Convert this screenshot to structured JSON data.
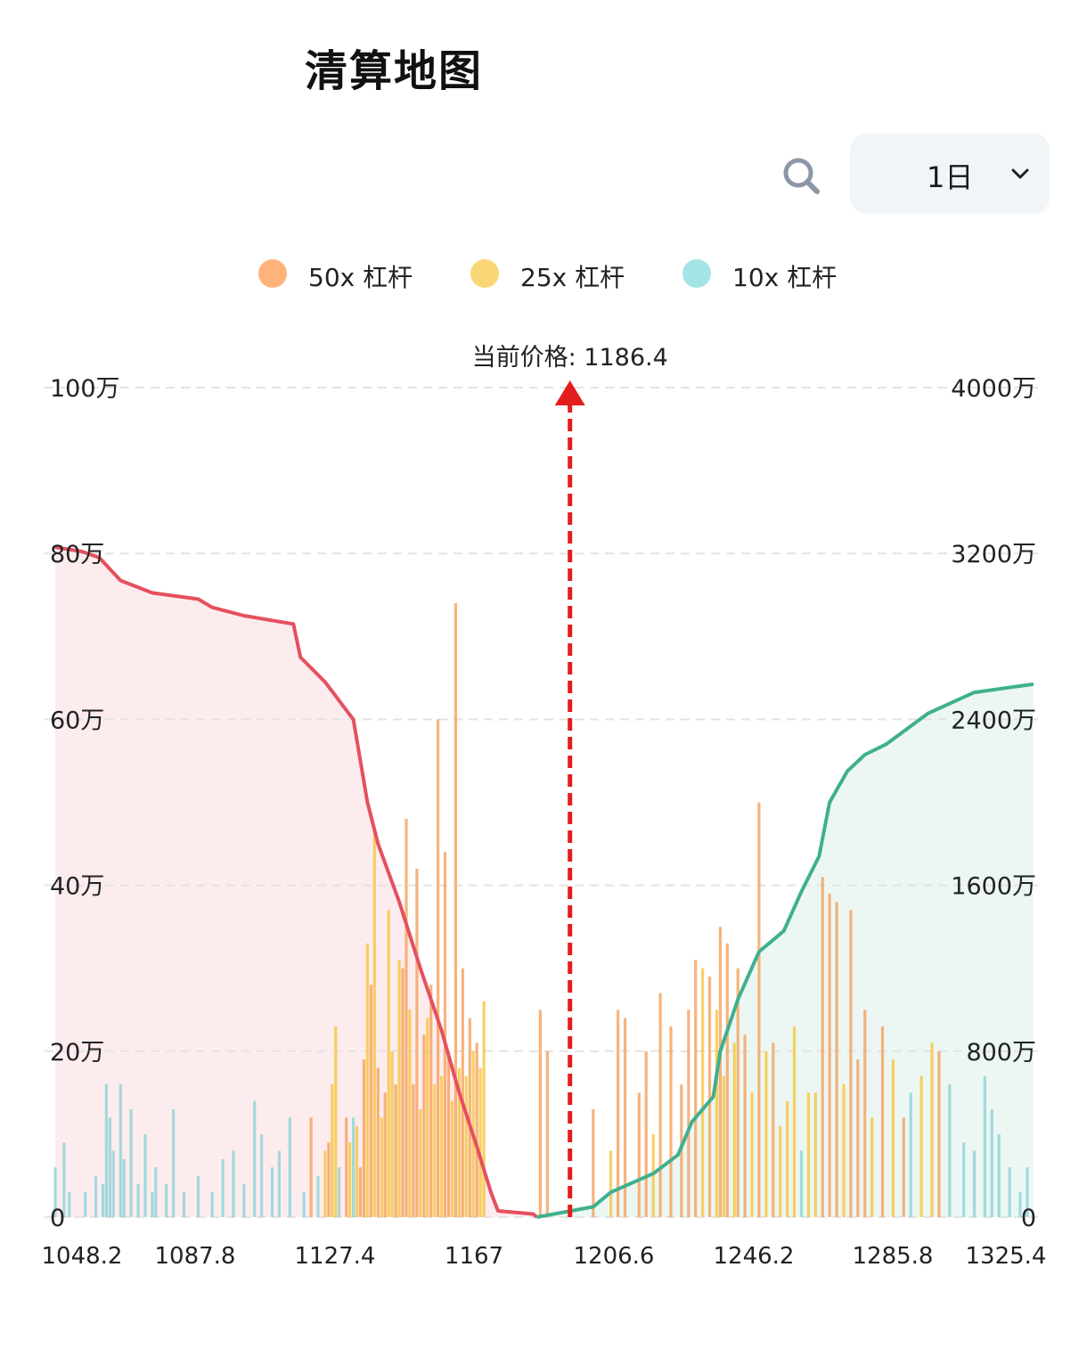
{
  "header": {
    "title": "清算地图",
    "period": "1日",
    "search_icon": "search-icon",
    "chevron_icon": "chevron-down-icon"
  },
  "legend": [
    {
      "label": "50x 杠杆",
      "color": "#ffb27a"
    },
    {
      "label": "25x 杠杆",
      "color": "#fad776"
    },
    {
      "label": "10x 杠杆",
      "color": "#a5e4e6"
    }
  ],
  "chart_data": {
    "type": "bar",
    "current_price_label": "当前价格: 1186.4",
    "current_price": 1186.4,
    "x_ticks": [
      "1048.2",
      "1087.8",
      "1127.4",
      "1167",
      "1206.6",
      "1246.2",
      "1285.8",
      "1325.4"
    ],
    "x_range": [
      1040.5,
      1317.8
    ],
    "left_axis": {
      "ticks": [
        "0",
        "20万",
        "40万",
        "60万",
        "80万",
        "100万"
      ],
      "ylim": [
        0,
        1000000
      ]
    },
    "right_axis": {
      "ticks": [
        "0",
        "800万",
        "1600万",
        "2400万",
        "3200万",
        "4000万"
      ],
      "ylim": [
        0,
        40000000
      ]
    },
    "grid": true,
    "colors": {
      "short_line": "#e5505f",
      "short_fill": "#fdecee",
      "long_line": "#3fb08f",
      "long_fill": "#ecf7f3",
      "arrow": "#e31d1d",
      "lev50": "#f5a25f",
      "lev25": "#f7c642",
      "lev10": "#8fd3d8"
    },
    "cumulative_short": [
      [
        1040.5,
        32300000
      ],
      [
        1048,
        32100000
      ],
      [
        1053,
        31800000
      ],
      [
        1059,
        30700000
      ],
      [
        1068,
        30100000
      ],
      [
        1081,
        29800000
      ],
      [
        1085,
        29400000
      ],
      [
        1094,
        29000000
      ],
      [
        1108,
        28600000
      ],
      [
        1110,
        27000000
      ],
      [
        1117,
        25800000
      ],
      [
        1125,
        24000000
      ],
      [
        1129,
        20000000
      ],
      [
        1132,
        18000000
      ],
      [
        1138,
        15200000
      ],
      [
        1144,
        12000000
      ],
      [
        1150,
        9000000
      ],
      [
        1155,
        6000000
      ],
      [
        1160,
        3400000
      ],
      [
        1164,
        1200000
      ],
      [
        1166,
        300000
      ],
      [
        1176,
        150000
      ],
      [
        1177,
        0
      ]
    ],
    "cumulative_long": [
      [
        1177,
        0
      ],
      [
        1193,
        500000
      ],
      [
        1198,
        1200000
      ],
      [
        1210,
        2100000
      ],
      [
        1217,
        3000000
      ],
      [
        1221,
        4600000
      ],
      [
        1227,
        5800000
      ],
      [
        1229,
        8000000
      ],
      [
        1234,
        10500000
      ],
      [
        1240,
        12800000
      ],
      [
        1247,
        13800000
      ],
      [
        1252,
        15700000
      ],
      [
        1257,
        17400000
      ],
      [
        1260,
        20000000
      ],
      [
        1265,
        21500000
      ],
      [
        1270,
        22300000
      ],
      [
        1276,
        22800000
      ],
      [
        1288,
        24300000
      ],
      [
        1301,
        25300000
      ],
      [
        1317.8,
        25700000
      ]
    ],
    "bars": [
      [
        1040.5,
        60000,
        "lev10"
      ],
      [
        1043,
        90000,
        "lev10"
      ],
      [
        1044.5,
        30000,
        "lev10"
      ],
      [
        1049,
        30000,
        "lev10"
      ],
      [
        1052,
        50000,
        "lev10"
      ],
      [
        1054,
        40000,
        "lev10"
      ],
      [
        1055,
        160000,
        "lev10"
      ],
      [
        1056,
        120000,
        "lev10"
      ],
      [
        1057,
        80000,
        "lev10"
      ],
      [
        1059,
        160000,
        "lev10"
      ],
      [
        1060,
        70000,
        "lev10"
      ],
      [
        1062,
        130000,
        "lev10"
      ],
      [
        1064,
        40000,
        "lev10"
      ],
      [
        1066,
        100000,
        "lev10"
      ],
      [
        1068,
        30000,
        "lev10"
      ],
      [
        1069,
        60000,
        "lev10"
      ],
      [
        1072,
        40000,
        "lev10"
      ],
      [
        1074,
        130000,
        "lev10"
      ],
      [
        1077,
        30000,
        "lev10"
      ],
      [
        1081,
        50000,
        "lev10"
      ],
      [
        1085,
        30000,
        "lev10"
      ],
      [
        1088,
        70000,
        "lev10"
      ],
      [
        1091,
        80000,
        "lev10"
      ],
      [
        1094,
        40000,
        "lev10"
      ],
      [
        1097,
        140000,
        "lev10"
      ],
      [
        1099,
        100000,
        "lev10"
      ],
      [
        1102,
        60000,
        "lev10"
      ],
      [
        1104,
        80000,
        "lev10"
      ],
      [
        1107,
        120000,
        "lev10"
      ],
      [
        1111,
        30000,
        "lev10"
      ],
      [
        1113,
        120000,
        "lev50"
      ],
      [
        1115,
        50000,
        "lev10"
      ],
      [
        1117,
        80000,
        "lev25"
      ],
      [
        1118,
        90000,
        "lev50"
      ],
      [
        1119,
        160000,
        "lev25"
      ],
      [
        1120,
        230000,
        "lev25"
      ],
      [
        1121,
        60000,
        "lev10"
      ],
      [
        1123,
        120000,
        "lev50"
      ],
      [
        1124,
        90000,
        "lev25"
      ],
      [
        1125,
        120000,
        "lev10"
      ],
      [
        1126,
        110000,
        "lev25"
      ],
      [
        1127,
        60000,
        "lev50"
      ],
      [
        1128,
        190000,
        "lev50"
      ],
      [
        1129,
        330000,
        "lev25"
      ],
      [
        1130,
        280000,
        "lev50"
      ],
      [
        1131,
        470000,
        "lev25"
      ],
      [
        1132,
        180000,
        "lev50"
      ],
      [
        1133,
        120000,
        "lev25"
      ],
      [
        1134,
        150000,
        "lev50"
      ],
      [
        1135,
        370000,
        "lev25"
      ],
      [
        1136,
        200000,
        "lev25"
      ],
      [
        1137,
        160000,
        "lev50"
      ],
      [
        1138,
        310000,
        "lev25"
      ],
      [
        1139,
        300000,
        "lev50"
      ],
      [
        1140,
        480000,
        "lev50"
      ],
      [
        1141,
        250000,
        "lev25"
      ],
      [
        1142,
        160000,
        "lev50"
      ],
      [
        1143,
        420000,
        "lev50"
      ],
      [
        1144,
        130000,
        "lev25"
      ],
      [
        1145,
        220000,
        "lev50"
      ],
      [
        1146,
        240000,
        "lev25"
      ],
      [
        1147,
        280000,
        "lev50"
      ],
      [
        1148,
        160000,
        "lev25"
      ],
      [
        1149,
        600000,
        "lev50"
      ],
      [
        1150,
        170000,
        "lev25"
      ],
      [
        1151,
        440000,
        "lev50"
      ],
      [
        1152,
        200000,
        "lev50"
      ],
      [
        1153,
        140000,
        "lev25"
      ],
      [
        1154,
        740000,
        "lev50"
      ],
      [
        1155,
        180000,
        "lev25"
      ],
      [
        1156,
        300000,
        "lev50"
      ],
      [
        1157,
        170000,
        "lev25"
      ],
      [
        1158,
        240000,
        "lev50"
      ],
      [
        1159,
        200000,
        "lev25"
      ],
      [
        1160,
        210000,
        "lev50"
      ],
      [
        1161,
        180000,
        "lev25"
      ],
      [
        1162,
        260000,
        "lev25"
      ],
      [
        1178,
        250000,
        "lev50"
      ],
      [
        1180,
        200000,
        "lev50"
      ],
      [
        1193,
        130000,
        "lev50"
      ],
      [
        1198,
        80000,
        "lev25"
      ],
      [
        1200,
        250000,
        "lev50"
      ],
      [
        1202,
        240000,
        "lev50"
      ],
      [
        1206,
        150000,
        "lev50"
      ],
      [
        1208,
        200000,
        "lev50"
      ],
      [
        1210,
        100000,
        "lev25"
      ],
      [
        1212,
        270000,
        "lev50"
      ],
      [
        1215,
        230000,
        "lev50"
      ],
      [
        1218,
        160000,
        "lev50"
      ],
      [
        1220,
        250000,
        "lev50"
      ],
      [
        1222,
        310000,
        "lev50"
      ],
      [
        1224,
        300000,
        "lev25"
      ],
      [
        1226,
        290000,
        "lev50"
      ],
      [
        1228,
        250000,
        "lev25"
      ],
      [
        1229,
        350000,
        "lev50"
      ],
      [
        1230,
        170000,
        "lev25"
      ],
      [
        1231,
        330000,
        "lev50"
      ],
      [
        1233,
        210000,
        "lev25"
      ],
      [
        1234,
        300000,
        "lev50"
      ],
      [
        1236,
        220000,
        "lev50"
      ],
      [
        1238,
        150000,
        "lev25"
      ],
      [
        1240,
        500000,
        "lev50"
      ],
      [
        1242,
        200000,
        "lev25"
      ],
      [
        1244,
        210000,
        "lev50"
      ],
      [
        1246,
        110000,
        "lev25"
      ],
      [
        1248,
        140000,
        "lev25"
      ],
      [
        1250,
        230000,
        "lev25"
      ],
      [
        1252,
        80000,
        "lev10"
      ],
      [
        1254,
        150000,
        "lev25"
      ],
      [
        1256,
        150000,
        "lev25"
      ],
      [
        1258,
        410000,
        "lev50"
      ],
      [
        1260,
        390000,
        "lev50"
      ],
      [
        1262,
        380000,
        "lev50"
      ],
      [
        1264,
        160000,
        "lev25"
      ],
      [
        1266,
        370000,
        "lev50"
      ],
      [
        1268,
        190000,
        "lev50"
      ],
      [
        1270,
        250000,
        "lev50"
      ],
      [
        1272,
        120000,
        "lev25"
      ],
      [
        1275,
        230000,
        "lev50"
      ],
      [
        1278,
        190000,
        "lev25"
      ],
      [
        1281,
        120000,
        "lev50"
      ],
      [
        1283,
        150000,
        "lev10"
      ],
      [
        1286,
        170000,
        "lev25"
      ],
      [
        1289,
        210000,
        "lev25"
      ],
      [
        1291,
        200000,
        "lev50"
      ],
      [
        1294,
        160000,
        "lev10"
      ],
      [
        1298,
        90000,
        "lev10"
      ],
      [
        1301,
        80000,
        "lev10"
      ],
      [
        1304,
        170000,
        "lev10"
      ],
      [
        1306,
        130000,
        "lev10"
      ],
      [
        1308,
        100000,
        "lev10"
      ],
      [
        1311,
        60000,
        "lev10"
      ],
      [
        1314,
        30000,
        "lev10"
      ],
      [
        1316,
        60000,
        "lev10"
      ]
    ]
  }
}
